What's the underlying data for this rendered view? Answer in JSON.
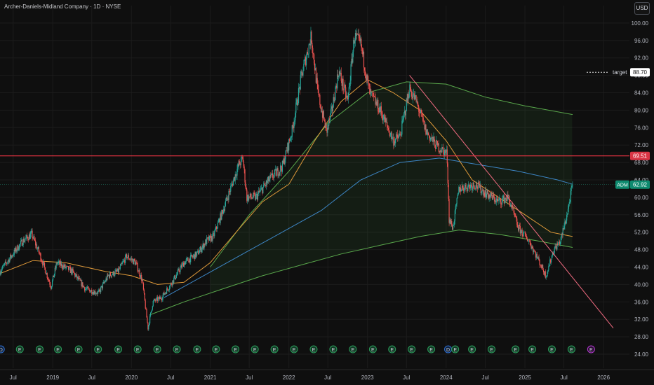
{
  "header": {
    "title": "Archer-Daniels-Midland Company · 1D · NYSE",
    "currency_button": "USD"
  },
  "colors": {
    "background": "#0f0f0f",
    "grid": "#1c1c1c",
    "candle_up": "#26a69a",
    "candle_down": "#ef5350",
    "ma_orange": "#e09a3a",
    "ma_blue": "#3d86c6",
    "ma_green": "#5aa84c",
    "trend_line": "#f06b80",
    "resistance": "#f23645",
    "price_label_bg": "#0e8a6f",
    "resistance_label_bg": "#d93545"
  },
  "chart_data": {
    "type": "candlestick",
    "title": "Archer-Daniels-Midland Company · 1D · NYSE",
    "symbol": "ADM",
    "current_price": 62.92,
    "current_price_label": "62.92",
    "resistance_level": 69.51,
    "resistance_label": "69.51",
    "target_level": 88.7,
    "target_label": "target",
    "target_value_label": "88.70",
    "ylim": [
      24,
      104
    ],
    "y_ticks": [
      24,
      28,
      32,
      36,
      40,
      44,
      48,
      52,
      56,
      60,
      64,
      68,
      72,
      76,
      80,
      84,
      88,
      92,
      96,
      100
    ],
    "y_tick_labels": [
      "24.00",
      "28.00",
      "32.00",
      "36.00",
      "40.00",
      "44.00",
      "48.00",
      "52.00",
      "56.00",
      "60.00",
      "64.00",
      "68.00",
      "72.00",
      "76.00",
      "80.00",
      "84.00",
      "88.00",
      "92.00",
      "96.00",
      "100.00"
    ],
    "xlim": [
      "2018-05-01",
      "2026-05-01"
    ],
    "x_ticks": [
      {
        "date": "2018-07-01",
        "label": "Jul"
      },
      {
        "date": "2019-01-01",
        "label": "2019"
      },
      {
        "date": "2019-07-01",
        "label": "Jul"
      },
      {
        "date": "2020-01-01",
        "label": "2020"
      },
      {
        "date": "2020-07-01",
        "label": "Jul"
      },
      {
        "date": "2021-01-01",
        "label": "2021"
      },
      {
        "date": "2021-07-01",
        "label": "Jul"
      },
      {
        "date": "2022-01-01",
        "label": "2022"
      },
      {
        "date": "2022-07-01",
        "label": "Jul"
      },
      {
        "date": "2023-01-01",
        "label": "2023"
      },
      {
        "date": "2023-07-01",
        "label": "Jul"
      },
      {
        "date": "2024-01-01",
        "label": "2024"
      },
      {
        "date": "2024-07-01",
        "label": "Jul"
      },
      {
        "date": "2025-01-01",
        "label": "2025"
      },
      {
        "date": "2025-07-01",
        "label": "Jul"
      },
      {
        "date": "2026-01-01",
        "label": "2026"
      }
    ],
    "price_path": [
      [
        "2018-05-01",
        43
      ],
      [
        "2018-06-15",
        46
      ],
      [
        "2018-08-15",
        50
      ],
      [
        "2018-09-25",
        51.5
      ],
      [
        "2018-11-01",
        47
      ],
      [
        "2018-12-24",
        39.5
      ],
      [
        "2019-01-20",
        45
      ],
      [
        "2019-04-01",
        43
      ],
      [
        "2019-06-01",
        39
      ],
      [
        "2019-08-01",
        38
      ],
      [
        "2019-09-15",
        42
      ],
      [
        "2019-11-01",
        43
      ],
      [
        "2019-12-10",
        46.5
      ],
      [
        "2020-01-20",
        45
      ],
      [
        "2020-02-20",
        41
      ],
      [
        "2020-03-18",
        30
      ],
      [
        "2020-04-10",
        36
      ],
      [
        "2020-05-20",
        37
      ],
      [
        "2020-07-01",
        40
      ],
      [
        "2020-09-01",
        45
      ],
      [
        "2020-11-01",
        47
      ],
      [
        "2020-12-15",
        50
      ],
      [
        "2021-01-15",
        51
      ],
      [
        "2021-03-01",
        57
      ],
      [
        "2021-05-10",
        67
      ],
      [
        "2021-06-01",
        69
      ],
      [
        "2021-06-20",
        60
      ],
      [
        "2021-08-01",
        60
      ],
      [
        "2021-10-01",
        64
      ],
      [
        "2021-12-01",
        67
      ],
      [
        "2022-01-15",
        75
      ],
      [
        "2022-03-01",
        88
      ],
      [
        "2022-04-15",
        97
      ],
      [
        "2022-05-15",
        84
      ],
      [
        "2022-06-25",
        75
      ],
      [
        "2022-07-20",
        80
      ],
      [
        "2022-08-20",
        89
      ],
      [
        "2022-10-01",
        82
      ],
      [
        "2022-11-01",
        97
      ],
      [
        "2022-12-01",
        95
      ],
      [
        "2023-01-10",
        84
      ],
      [
        "2023-03-01",
        80
      ],
      [
        "2023-05-01",
        73
      ],
      [
        "2023-06-01",
        74
      ],
      [
        "2023-07-15",
        85
      ],
      [
        "2023-08-15",
        82
      ],
      [
        "2023-10-01",
        75
      ],
      [
        "2023-11-15",
        72
      ],
      [
        "2024-01-05",
        70
      ],
      [
        "2024-01-15",
        55
      ],
      [
        "2024-02-01",
        53
      ],
      [
        "2024-03-01",
        62
      ],
      [
        "2024-05-15",
        63
      ],
      [
        "2024-07-01",
        61
      ],
      [
        "2024-09-01",
        59
      ],
      [
        "2024-10-15",
        60
      ],
      [
        "2024-12-01",
        53
      ],
      [
        "2025-01-20",
        50
      ],
      [
        "2025-03-01",
        46
      ],
      [
        "2025-04-08",
        42
      ],
      [
        "2025-05-15",
        48
      ],
      [
        "2025-06-15",
        50
      ],
      [
        "2025-07-15",
        56
      ],
      [
        "2025-08-10",
        62.9
      ]
    ],
    "ma_orange": [
      [
        "2018-05-01",
        42.5
      ],
      [
        "2018-10-01",
        45.5
      ],
      [
        "2019-03-01",
        45
      ],
      [
        "2019-09-01",
        43
      ],
      [
        "2020-01-01",
        42
      ],
      [
        "2020-05-01",
        40
      ],
      [
        "2020-09-01",
        40.5
      ],
      [
        "2021-01-01",
        45
      ],
      [
        "2021-05-01",
        52
      ],
      [
        "2021-09-01",
        59
      ],
      [
        "2022-01-01",
        63
      ],
      [
        "2022-05-01",
        73
      ],
      [
        "2022-09-01",
        82
      ],
      [
        "2023-01-01",
        87
      ],
      [
        "2023-05-01",
        84
      ],
      [
        "2023-09-01",
        80
      ],
      [
        "2024-01-01",
        73
      ],
      [
        "2024-05-01",
        64
      ],
      [
        "2024-09-01",
        60
      ],
      [
        "2025-01-01",
        56
      ],
      [
        "2025-05-01",
        52
      ],
      [
        "2025-08-10",
        51
      ]
    ],
    "ma_blue": [
      [
        "2020-06-01",
        37
      ],
      [
        "2020-12-01",
        42
      ],
      [
        "2021-06-01",
        47
      ],
      [
        "2021-12-01",
        52
      ],
      [
        "2022-06-01",
        57
      ],
      [
        "2022-12-01",
        64
      ],
      [
        "2023-06-01",
        68
      ],
      [
        "2023-12-01",
        69
      ],
      [
        "2024-06-01",
        67.5
      ],
      [
        "2024-12-01",
        66
      ],
      [
        "2025-06-01",
        64
      ],
      [
        "2025-08-10",
        63
      ]
    ],
    "ma_green_upper": [
      [
        "2021-01-01",
        44
      ],
      [
        "2021-07-01",
        56
      ],
      [
        "2022-01-01",
        66
      ],
      [
        "2022-07-01",
        77
      ],
      [
        "2023-01-01",
        84
      ],
      [
        "2023-07-01",
        86.5
      ],
      [
        "2024-01-01",
        86
      ],
      [
        "2024-07-01",
        83
      ],
      [
        "2025-01-01",
        81
      ],
      [
        "2025-08-10",
        79
      ]
    ],
    "ma_green_lower": [
      [
        "2020-03-25",
        33
      ],
      [
        "2020-09-01",
        36
      ],
      [
        "2021-03-01",
        39
      ],
      [
        "2021-09-01",
        42
      ],
      [
        "2022-03-01",
        44.5
      ],
      [
        "2022-09-01",
        47
      ],
      [
        "2023-03-01",
        49
      ],
      [
        "2023-09-01",
        51
      ],
      [
        "2024-03-01",
        52.5
      ],
      [
        "2024-09-01",
        51.5
      ],
      [
        "2025-03-01",
        50
      ],
      [
        "2025-08-10",
        48.5
      ]
    ],
    "trend_line": [
      [
        "2023-07-15",
        88
      ],
      [
        "2026-02-15",
        30
      ]
    ],
    "events": [
      {
        "date": "2018-05-05",
        "type": "D"
      },
      {
        "date": "2018-08-01",
        "type": "E"
      },
      {
        "date": "2018-11-01",
        "type": "E"
      },
      {
        "date": "2019-01-25",
        "type": "E"
      },
      {
        "date": "2019-05-01",
        "type": "E"
      },
      {
        "date": "2019-07-30",
        "type": "E"
      },
      {
        "date": "2019-11-01",
        "type": "E"
      },
      {
        "date": "2020-01-30",
        "type": "E"
      },
      {
        "date": "2020-04-30",
        "type": "E"
      },
      {
        "date": "2020-07-30",
        "type": "E"
      },
      {
        "date": "2020-11-01",
        "type": "E"
      },
      {
        "date": "2021-01-28",
        "type": "E"
      },
      {
        "date": "2021-04-28",
        "type": "E"
      },
      {
        "date": "2021-07-27",
        "type": "E"
      },
      {
        "date": "2021-10-26",
        "type": "E"
      },
      {
        "date": "2022-01-25",
        "type": "E"
      },
      {
        "date": "2022-04-26",
        "type": "E"
      },
      {
        "date": "2022-07-26",
        "type": "E"
      },
      {
        "date": "2022-10-25",
        "type": "E"
      },
      {
        "date": "2023-01-26",
        "type": "E"
      },
      {
        "date": "2023-04-25",
        "type": "E"
      },
      {
        "date": "2023-07-25",
        "type": "E"
      },
      {
        "date": "2023-10-24",
        "type": "E"
      },
      {
        "date": "2024-01-10",
        "type": "D"
      },
      {
        "date": "2024-02-12",
        "type": "E"
      },
      {
        "date": "2024-04-30",
        "type": "E"
      },
      {
        "date": "2024-07-30",
        "type": "E"
      },
      {
        "date": "2024-11-18",
        "type": "E"
      },
      {
        "date": "2025-02-04",
        "type": "E"
      },
      {
        "date": "2025-05-06",
        "type": "E"
      },
      {
        "date": "2025-08-05",
        "type": "E"
      },
      {
        "date": "2025-11-04",
        "type": "E-future"
      }
    ]
  }
}
